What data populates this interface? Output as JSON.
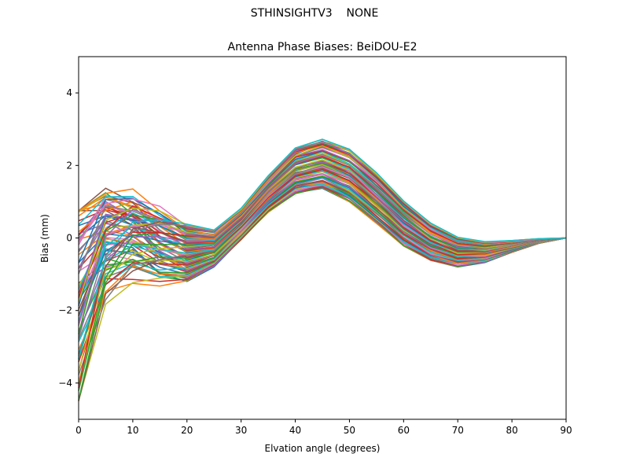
{
  "suptitle": "STHINSIGHTV3    NONE",
  "chart_data": {
    "type": "line",
    "title": "Antenna Phase Biases: BeiDOU-E2",
    "xlabel": "Elvation angle (degrees)",
    "ylabel": "Bias (mm)",
    "xlim": [
      0,
      90
    ],
    "ylim": [
      -5,
      5
    ],
    "xticks": [
      0,
      10,
      20,
      30,
      40,
      50,
      60,
      70,
      80,
      90
    ],
    "yticks": [
      -4,
      -2,
      0,
      2,
      4
    ],
    "grid": false,
    "legend": "none",
    "x": [
      0,
      5,
      10,
      15,
      20,
      25,
      30,
      35,
      40,
      45,
      50,
      55,
      60,
      65,
      70,
      75,
      80,
      85,
      90
    ],
    "series_count": 80,
    "series_envelope": {
      "upper": [
        0.75,
        1.55,
        1.48,
        0.95,
        0.38,
        0.22,
        0.82,
        1.72,
        2.48,
        2.72,
        2.45,
        1.8,
        1.05,
        0.42,
        0.03,
        -0.1,
        -0.07,
        -0.02,
        0.0
      ],
      "lower": [
        -4.5,
        -1.92,
        -1.38,
        -1.38,
        -1.2,
        -0.8,
        -0.05,
        0.7,
        1.22,
        1.35,
        1.0,
        0.4,
        -0.22,
        -0.62,
        -0.8,
        -0.68,
        -0.4,
        -0.15,
        0.0
      ]
    },
    "colors": [
      "#1f77b4",
      "#ff7f0e",
      "#2ca02c",
      "#d62728",
      "#9467bd",
      "#8c564b",
      "#e377c2",
      "#7f7f7f",
      "#bcbd22",
      "#17becf"
    ]
  }
}
